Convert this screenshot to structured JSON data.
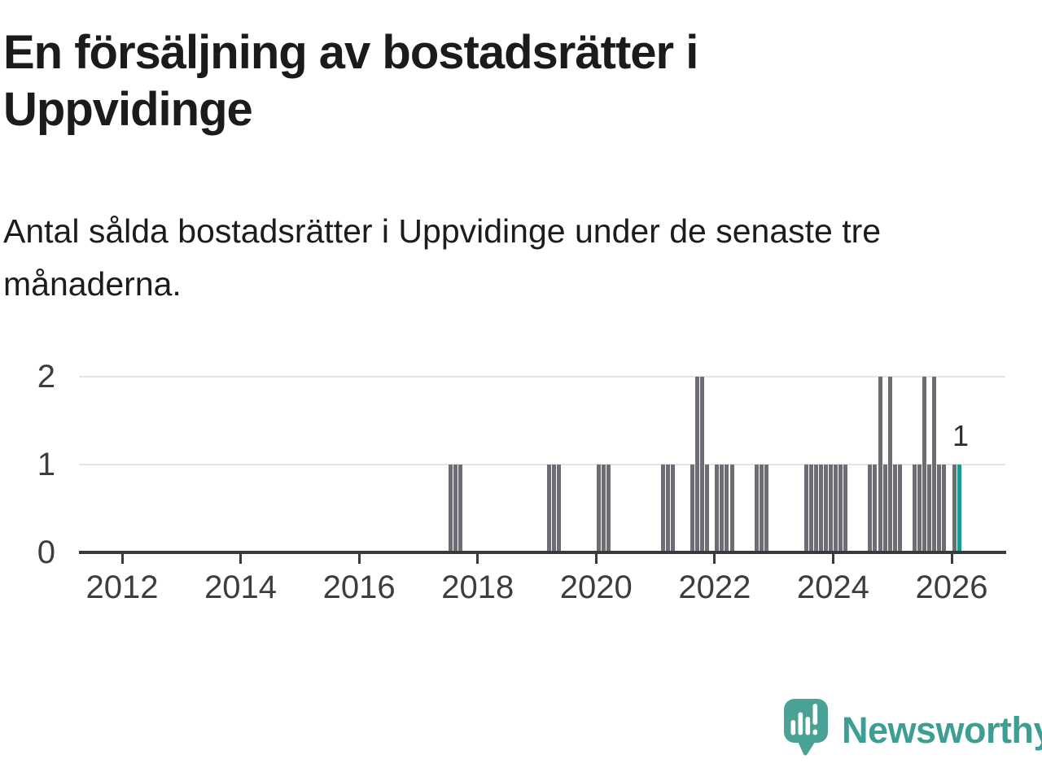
{
  "header": {
    "title": "En försäljning av bostadsrätter i Uppvidinge",
    "subtitle": "Antal sålda bostadsrätter i Uppvidinge under de senaste tre månaderna."
  },
  "chart_data": {
    "type": "bar",
    "title": "En försäljning av bostadsrätter i Uppvidinge",
    "xlabel": "",
    "ylabel": "",
    "ylim": [
      0,
      2
    ],
    "y_ticks": [
      0,
      1,
      2
    ],
    "x_ticks": [
      2012,
      2014,
      2016,
      2018,
      2020,
      2022,
      2024,
      2026
    ],
    "grid": "horizontal",
    "bar_color": "#6d6d75",
    "highlight_color": "#149e91",
    "annotation": {
      "text": "1"
    },
    "bars": [
      {
        "month": "2017-07",
        "value": 1
      },
      {
        "month": "2017-08",
        "value": 1
      },
      {
        "month": "2017-09",
        "value": 1
      },
      {
        "month": "2019-03",
        "value": 1
      },
      {
        "month": "2019-04",
        "value": 1
      },
      {
        "month": "2019-05",
        "value": 1
      },
      {
        "month": "2020-01",
        "value": 1
      },
      {
        "month": "2020-02",
        "value": 1
      },
      {
        "month": "2020-03",
        "value": 1
      },
      {
        "month": "2021-02",
        "value": 1
      },
      {
        "month": "2021-03",
        "value": 1
      },
      {
        "month": "2021-04",
        "value": 1
      },
      {
        "month": "2021-08",
        "value": 1
      },
      {
        "month": "2021-09",
        "value": 2
      },
      {
        "month": "2021-10",
        "value": 2
      },
      {
        "month": "2021-11",
        "value": 1
      },
      {
        "month": "2022-01",
        "value": 1
      },
      {
        "month": "2022-02",
        "value": 1
      },
      {
        "month": "2022-03",
        "value": 1
      },
      {
        "month": "2022-04",
        "value": 1
      },
      {
        "month": "2022-09",
        "value": 1
      },
      {
        "month": "2022-10",
        "value": 1
      },
      {
        "month": "2022-11",
        "value": 1
      },
      {
        "month": "2023-07",
        "value": 1
      },
      {
        "month": "2023-08",
        "value": 1
      },
      {
        "month": "2023-09",
        "value": 1
      },
      {
        "month": "2023-10",
        "value": 1
      },
      {
        "month": "2023-11",
        "value": 1
      },
      {
        "month": "2023-12",
        "value": 1
      },
      {
        "month": "2024-01",
        "value": 1
      },
      {
        "month": "2024-02",
        "value": 1
      },
      {
        "month": "2024-03",
        "value": 1
      },
      {
        "month": "2024-08",
        "value": 1
      },
      {
        "month": "2024-09",
        "value": 1
      },
      {
        "month": "2024-10",
        "value": 2
      },
      {
        "month": "2024-11",
        "value": 1
      },
      {
        "month": "2024-12",
        "value": 2
      },
      {
        "month": "2025-01",
        "value": 1
      },
      {
        "month": "2025-02",
        "value": 1
      },
      {
        "month": "2025-05",
        "value": 1
      },
      {
        "month": "2025-06",
        "value": 1
      },
      {
        "month": "2025-07",
        "value": 2
      },
      {
        "month": "2025-08",
        "value": 1
      },
      {
        "month": "2025-09",
        "value": 2
      },
      {
        "month": "2025-10",
        "value": 1
      },
      {
        "month": "2025-11",
        "value": 1
      },
      {
        "month": "2026-01",
        "value": 1
      },
      {
        "month": "2026-02",
        "value": 1,
        "highlight": true
      }
    ]
  },
  "footer": {
    "logo_text": "Newsworthy",
    "logo_icon": "newsworthy-speech-bubble-bar-chart-icon",
    "logo_text_color": "#3d9e93",
    "logo_icon_color": "#4aa195"
  }
}
